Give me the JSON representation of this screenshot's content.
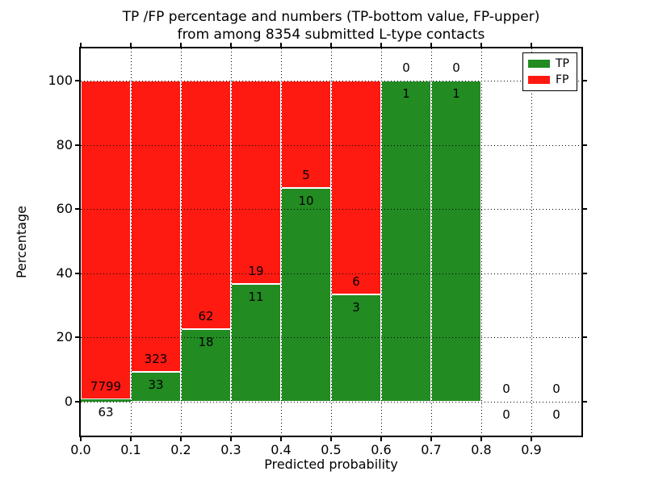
{
  "title": {
    "line1": "TP /FP percentage and numbers (TP-bottom value, FP-upper)",
    "line2": "from among 8354 submitted L-type contacts"
  },
  "axes": {
    "xlabel": "Predicted probability",
    "ylabel": "Percentage",
    "yticks": {
      "values": [
        0,
        20,
        40,
        60,
        80,
        100
      ],
      "labels": [
        "0",
        "20",
        "40",
        "60",
        "80",
        "100"
      ]
    },
    "xticks": {
      "values": [
        0.0,
        0.1,
        0.2,
        0.3,
        0.4,
        0.5,
        0.6,
        0.7,
        0.8,
        0.9
      ],
      "labels": [
        "0.0",
        "0.1",
        "0.2",
        "0.3",
        "0.4",
        "0.5",
        "0.6",
        "0.7",
        "0.8",
        "0.9"
      ]
    }
  },
  "legend": {
    "position": "upper right",
    "items": [
      {
        "label": "TP",
        "color": "#228b22"
      },
      {
        "label": "FP",
        "color": "#ff1a11"
      }
    ]
  },
  "chart_data": {
    "type": "bar",
    "subtype": "stacked-100-percent",
    "title": "TP /FP percentage and numbers (TP-bottom value, FP-upper) from among 8354 submitted L-type contacts",
    "xlabel": "Predicted probability",
    "ylabel": "Percentage",
    "categories": [
      "0.0-0.1",
      "0.1-0.2",
      "0.2-0.3",
      "0.3-0.4",
      "0.4-0.5",
      "0.5-0.6",
      "0.6-0.7",
      "0.7-0.8",
      "0.8-0.9",
      "0.9-1.0"
    ],
    "bin_edges": [
      0.0,
      0.1,
      0.2,
      0.3,
      0.4,
      0.5,
      0.6,
      0.7,
      0.8,
      0.9,
      1.0
    ],
    "series": [
      {
        "name": "TP",
        "color": "#228b22",
        "counts": [
          63,
          33,
          18,
          11,
          10,
          3,
          1,
          1,
          0,
          0
        ],
        "percent": [
          0.8,
          9.27,
          22.5,
          36.67,
          66.67,
          33.33,
          100,
          100,
          0,
          0
        ]
      },
      {
        "name": "FP",
        "color": "#ff1a11",
        "counts": [
          7799,
          323,
          62,
          19,
          5,
          6,
          0,
          0,
          0,
          0
        ],
        "percent": [
          99.2,
          90.73,
          77.5,
          63.33,
          33.33,
          66.67,
          0,
          0,
          0,
          0
        ]
      }
    ],
    "total_submitted": 8354,
    "xlim": [
      0.0,
      1.0
    ],
    "ylim": [
      -10.5,
      110.5
    ],
    "grid": true,
    "grid_style": "dotted",
    "legend_position": "upper right"
  }
}
